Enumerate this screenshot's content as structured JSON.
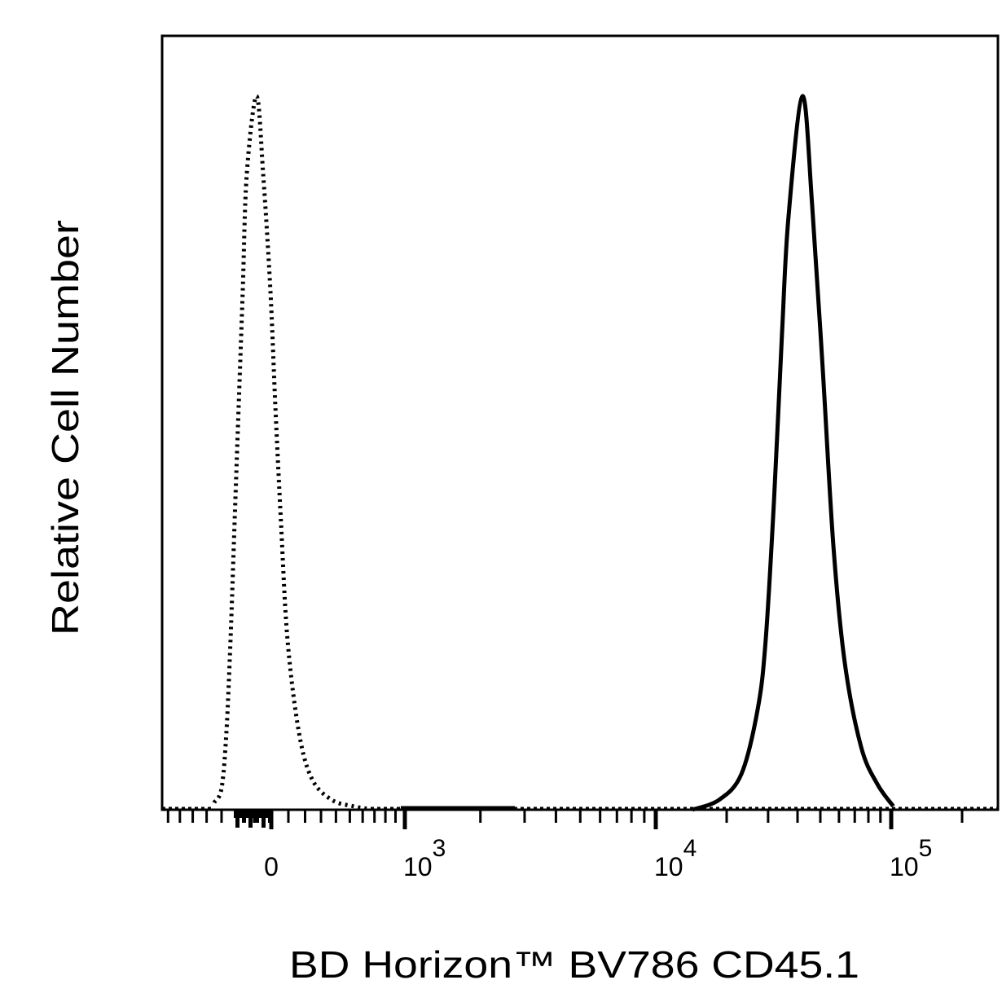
{
  "chart_data": {
    "type": "line",
    "title": "",
    "xlabel": "BD Horizon™ BV786 CD45.1",
    "ylabel": "Relative Cell Number",
    "x_scale": "biexponential",
    "xlim": [
      -750,
      280000
    ],
    "ylim": [
      0,
      110
    ],
    "grid": false,
    "x_ticks": [
      {
        "value": 0,
        "label": "0",
        "sup": ""
      },
      {
        "value": 1000,
        "label": "10",
        "sup": "3"
      },
      {
        "value": 10000,
        "label": "10",
        "sup": "4"
      },
      {
        "value": 100000,
        "label": "10",
        "sup": "5"
      }
    ],
    "series": [
      {
        "style": "dotted",
        "color": "#000000",
        "points": [
          [
            -349,
            1
          ],
          [
            -300,
            3
          ],
          [
            -269,
            10.8
          ],
          [
            -243,
            23.8
          ],
          [
            -218,
            40.1
          ],
          [
            -193,
            56.4
          ],
          [
            -168,
            72.7
          ],
          [
            -144,
            89
          ],
          [
            -86,
            100
          ],
          [
            -47,
            89
          ],
          [
            -5,
            72.7
          ],
          [
            24,
            56.4
          ],
          [
            57,
            40.1
          ],
          [
            95,
            23.8
          ],
          [
            163,
            10.8
          ],
          [
            243,
            4.3
          ],
          [
            370,
            1.4
          ],
          [
            523,
            0.5
          ],
          [
            656,
            0.1
          ]
        ]
      },
      {
        "style": "solid",
        "color": "#000000",
        "points": [
          [
            14300,
            0
          ],
          [
            18600,
            1.4
          ],
          [
            23100,
            5
          ],
          [
            27100,
            14.1
          ],
          [
            29300,
            23.8
          ],
          [
            31800,
            43.5
          ],
          [
            34400,
            67
          ],
          [
            36600,
            83
          ],
          [
            42000,
            100
          ],
          [
            46200,
            84.5
          ],
          [
            51200,
            61.7
          ],
          [
            56800,
            37
          ],
          [
            63500,
            20.6
          ],
          [
            74500,
            8.8
          ],
          [
            87300,
            3.6
          ],
          [
            102000,
            0.5
          ]
        ]
      }
    ]
  }
}
